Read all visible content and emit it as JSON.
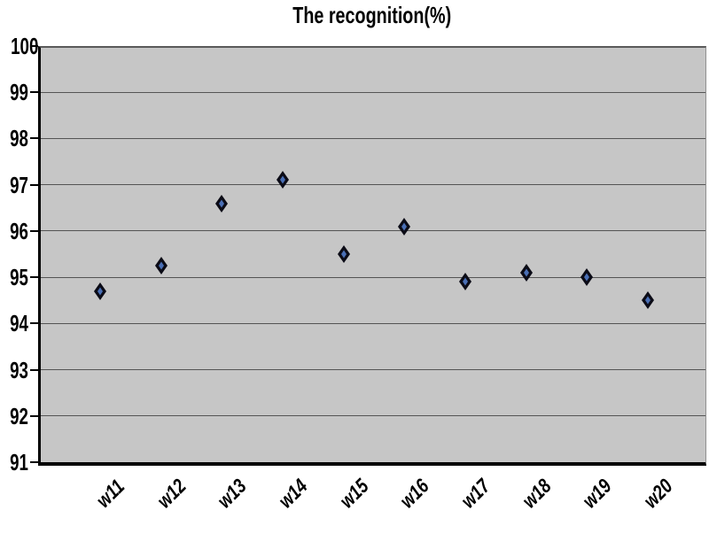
{
  "chart_data": {
    "type": "scatter",
    "title": "The recognition(%)",
    "categories": [
      "w11",
      "w12",
      "w13",
      "w14",
      "w15",
      "w16",
      "w17",
      "w18",
      "w19",
      "w20"
    ],
    "values": [
      94.7,
      95.25,
      96.6,
      97.1,
      95.5,
      96.1,
      94.9,
      95.1,
      95.0,
      94.5
    ],
    "xlabel": "",
    "ylabel": "",
    "ylim": [
      91,
      100
    ],
    "ytick_step": 1,
    "ytick_labels": [
      "91",
      "92",
      "93",
      "94",
      "95",
      "96",
      "97",
      "98",
      "99",
      "100"
    ],
    "grid": true,
    "legend": "none",
    "marker": "diamond",
    "colors": {
      "page_background": "#ffffff",
      "plot_background": "#c6c6c6",
      "gridline": "#3f3f3f",
      "axis": "#000000",
      "text": "#000000",
      "marker_outline": "#0b0b16",
      "marker_fill": "#4a6fb5"
    }
  }
}
